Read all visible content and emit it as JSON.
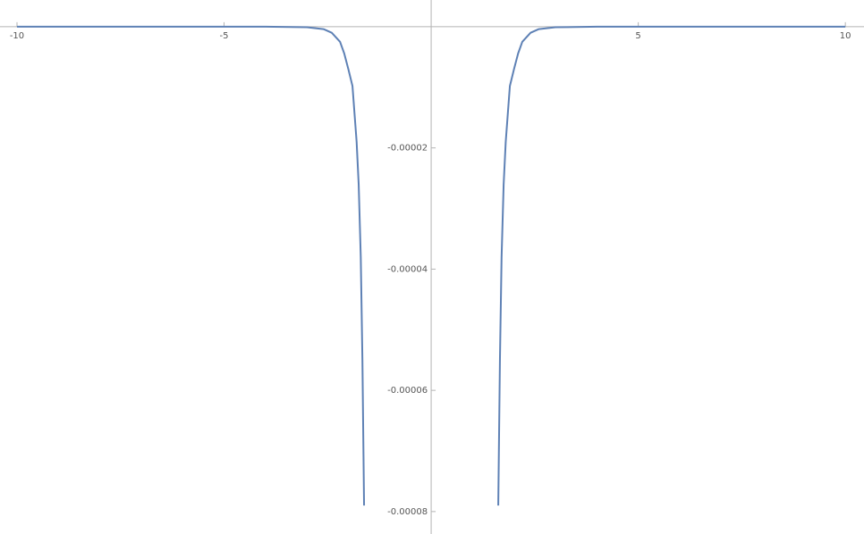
{
  "chart_data": {
    "type": "line",
    "x": [
      -10,
      -4,
      -3,
      -2.6,
      -2.4,
      -2.2,
      -2.1,
      -2,
      -1.9,
      -1.8,
      -1.75,
      -1.7,
      -1.66,
      -1.62,
      0,
      1.62,
      1.66,
      1.7,
      1.75,
      1.8,
      1.9,
      2,
      2.1,
      2.2,
      2.4,
      2.6,
      3,
      4,
      10
    ],
    "values": [
      0,
      0,
      -1e-07,
      -4e-07,
      -1e-06,
      -2.5e-06,
      -4.4e-06,
      -7e-06,
      -9.8e-06,
      -1.9e-05,
      -2.6e-05,
      -3.8e-05,
      -5.5e-05,
      -7.9e-05,
      null,
      -7.9e-05,
      -5.5e-05,
      -3.8e-05,
      -2.6e-05,
      -1.9e-05,
      -9.8e-06,
      -7e-06,
      -4.4e-06,
      -2.5e-06,
      -1e-06,
      -4e-07,
      -1e-07,
      0,
      0
    ],
    "color": "#5e81b5",
    "xlim": [
      -10.41,
      10.45
    ],
    "ylim": [
      -8.37e-05,
      4.4e-06
    ],
    "xticks": [
      -10,
      -5,
      5,
      10
    ],
    "yticks": [
      -2e-05,
      -4e-05,
      -6e-05,
      -8e-05
    ]
  }
}
